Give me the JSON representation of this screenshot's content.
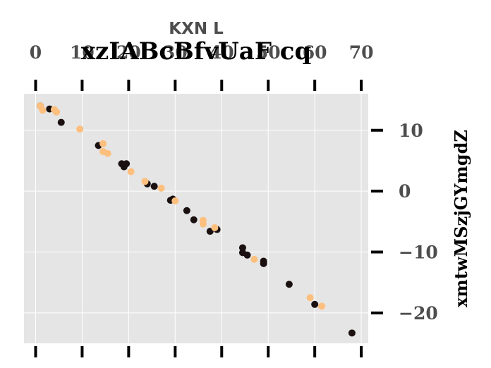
{
  "chart_data": {
    "type": "scatter",
    "title": "xzIABcBfvUaF cq",
    "xlabel": "KXN L",
    "ylabel": "xmtwMSzjGYmgdZ",
    "xlim": [
      -2.5,
      71.5
    ],
    "ylim": [
      -25,
      16
    ],
    "xticks": [
      0,
      10,
      20,
      30,
      40,
      50,
      60,
      70
    ],
    "yticks": [
      -20,
      -10,
      0,
      10
    ],
    "x_axis_position": "top",
    "y_axis_position": "right",
    "grid": true,
    "background": "#e5e5e5",
    "series": [
      {
        "color": "#1a1010",
        "points": [
          [
            1,
            14
          ],
          [
            3,
            13.5
          ],
          [
            5.5,
            11.3
          ],
          [
            13.5,
            7.5
          ],
          [
            18.5,
            4.5
          ],
          [
            19,
            4
          ],
          [
            19.5,
            4.5
          ],
          [
            24,
            1.2
          ],
          [
            25.5,
            0.8
          ],
          [
            29,
            -1.5
          ],
          [
            29.5,
            -1.3
          ],
          [
            32.5,
            -3.2
          ],
          [
            34,
            -4.7
          ],
          [
            37.5,
            -6.6
          ],
          [
            39,
            -6.3
          ],
          [
            44.5,
            -9.3
          ],
          [
            44.5,
            -10.1
          ],
          [
            45.5,
            -10.5
          ],
          [
            49,
            -11.5
          ],
          [
            49,
            -11.9
          ],
          [
            54.5,
            -15.3
          ],
          [
            60,
            -18.6
          ],
          [
            68,
            -23.3
          ]
        ]
      },
      {
        "color": "#fdbf7e",
        "points": [
          [
            1,
            14
          ],
          [
            1.5,
            13.3
          ],
          [
            4,
            13.4
          ],
          [
            4.5,
            13
          ],
          [
            9.5,
            10.2
          ],
          [
            14.5,
            7.8
          ],
          [
            14.5,
            6.5
          ],
          [
            15.5,
            6.2
          ],
          [
            20.5,
            3.2
          ],
          [
            23.5,
            1.6
          ],
          [
            27,
            0.5
          ],
          [
            30,
            -1.6
          ],
          [
            36,
            -4.8
          ],
          [
            36,
            -5.4
          ],
          [
            38.5,
            -6
          ],
          [
            47,
            -11.2
          ],
          [
            59,
            -17.5
          ],
          [
            61.5,
            -18.9
          ]
        ]
      }
    ]
  }
}
